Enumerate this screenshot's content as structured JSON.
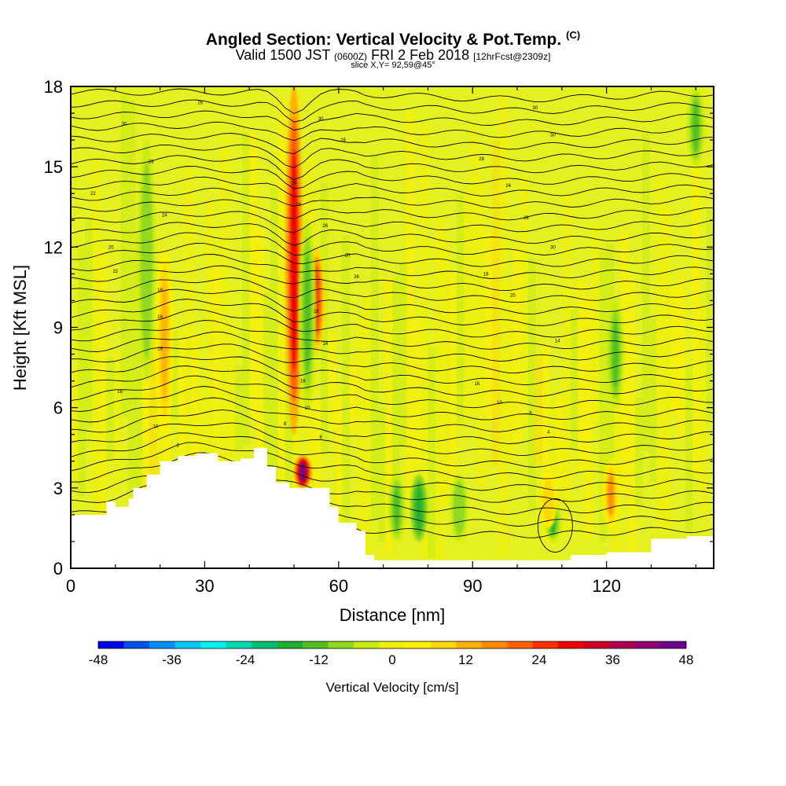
{
  "header": {
    "title": "Angled Section: Vertical Velocity & Pot.Temp.",
    "title_unit": "(C)",
    "valid_main": "Valid 1500 JST",
    "valid_utc": "(0600Z)",
    "valid_date": "FRI 2 Feb 2018",
    "valid_fcst": "[12hrFcst@2309z]",
    "slice": "slice X,Y= 92,59@45°"
  },
  "chart_data": {
    "type": "heatmap",
    "title": "Angled Section: Vertical Velocity & Pot.Temp.",
    "xlabel": "Distance [nm]",
    "ylabel": "Height [Kft MSL]",
    "xlim": [
      0,
      144
    ],
    "ylim": [
      0,
      18
    ],
    "x_ticks": [
      0,
      30,
      60,
      90,
      120
    ],
    "y_ticks": [
      0,
      3,
      6,
      9,
      12,
      15,
      18
    ],
    "colorbar": {
      "label": "Vertical Velocity [cm/s]",
      "ticks": [
        -48,
        -36,
        -24,
        -12,
        0,
        12,
        24,
        36,
        48
      ],
      "colors": [
        "#0000e8",
        "#0050f0",
        "#0090f8",
        "#00c8f8",
        "#00f0f0",
        "#00d8b0",
        "#00c070",
        "#20b030",
        "#50c020",
        "#90d820",
        "#c8ec10",
        "#f0f000",
        "#fff000",
        "#ffd800",
        "#ffb000",
        "#ff8c00",
        "#ff6000",
        "#ff3000",
        "#f00000",
        "#d00020",
        "#b00050",
        "#900070",
        "#6e0090"
      ]
    },
    "terrain_kft": [
      [
        0,
        2.0
      ],
      [
        8,
        2.5
      ],
      [
        10,
        2.3
      ],
      [
        13,
        2.6
      ],
      [
        14,
        3.0
      ],
      [
        17,
        3.5
      ],
      [
        20,
        4.0
      ],
      [
        24,
        4.2
      ],
      [
        28,
        4.3
      ],
      [
        33,
        4.0
      ],
      [
        38,
        4.1
      ],
      [
        41,
        4.5
      ],
      [
        44,
        3.8
      ],
      [
        46,
        3.2
      ],
      [
        49,
        3.0
      ],
      [
        55,
        3.0
      ],
      [
        58,
        2.3
      ],
      [
        60,
        1.7
      ],
      [
        64,
        1.4
      ],
      [
        66,
        0.5
      ],
      [
        68,
        0.3
      ],
      [
        110,
        0.3
      ],
      [
        112,
        0.5
      ],
      [
        120,
        0.6
      ],
      [
        130,
        1.1
      ],
      [
        138,
        1.2
      ],
      [
        144,
        1.2
      ]
    ],
    "vertical_velocity_features": [
      {
        "x": 50,
        "z_range": [
          5,
          18
        ],
        "w": 30
      },
      {
        "x": 52,
        "z_range": [
          3,
          4.2
        ],
        "w": 48
      },
      {
        "x": 55,
        "z_range": [
          8,
          12
        ],
        "w": 24
      },
      {
        "x": 21,
        "z_range": [
          5,
          12
        ],
        "w": 14
      },
      {
        "x": 17,
        "z_range": [
          7,
          16
        ],
        "w": -10
      },
      {
        "x": 53,
        "z_range": [
          6,
          13
        ],
        "w": -14
      },
      {
        "x": 73,
        "z_range": [
          1,
          3.5
        ],
        "w": -14
      },
      {
        "x": 78,
        "z_range": [
          1,
          3.5
        ],
        "w": -18
      },
      {
        "x": 87,
        "z_range": [
          1,
          3.5
        ],
        "w": -10
      },
      {
        "x": 122,
        "z_range": [
          6,
          10
        ],
        "w": -14
      },
      {
        "x": 121,
        "z_range": [
          1.5,
          4
        ],
        "w": 16
      },
      {
        "x": 108,
        "z_range": [
          1,
          2.5
        ],
        "w": -16
      },
      {
        "x": 107,
        "z_range": [
          1.5,
          3.5
        ],
        "w": 10
      },
      {
        "x": 140,
        "z_range": [
          15,
          18
        ],
        "w": -12
      }
    ],
    "isentrope_labels": [
      {
        "x": 29,
        "z": 17.4,
        "text": "26"
      },
      {
        "x": 12,
        "z": 16.6,
        "text": "30"
      },
      {
        "x": 18,
        "z": 15.2,
        "text": "28"
      },
      {
        "x": 5,
        "z": 14.0,
        "text": "22"
      },
      {
        "x": 21,
        "z": 13.2,
        "text": "24"
      },
      {
        "x": 9,
        "z": 12.0,
        "text": "20"
      },
      {
        "x": 10,
        "z": 11.1,
        "text": "22"
      },
      {
        "x": 20,
        "z": 10.4,
        "text": "18"
      },
      {
        "x": 20,
        "z": 9.4,
        "text": "18"
      },
      {
        "x": 20,
        "z": 8.2,
        "text": "16"
      },
      {
        "x": 11,
        "z": 6.6,
        "text": "16"
      },
      {
        "x": 19,
        "z": 5.3,
        "text": "10"
      },
      {
        "x": 24,
        "z": 4.6,
        "text": "8"
      },
      {
        "x": 56,
        "z": 16.8,
        "text": "30"
      },
      {
        "x": 61,
        "z": 16.0,
        "text": "28"
      },
      {
        "x": 50,
        "z": 14.4,
        "text": "26"
      },
      {
        "x": 51,
        "z": 13.6,
        "text": "24"
      },
      {
        "x": 57,
        "z": 12.8,
        "text": "26"
      },
      {
        "x": 62,
        "z": 11.7,
        "text": "20"
      },
      {
        "x": 64,
        "z": 10.9,
        "text": "26"
      },
      {
        "x": 55,
        "z": 9.6,
        "text": "18"
      },
      {
        "x": 57,
        "z": 8.4,
        "text": "14"
      },
      {
        "x": 52,
        "z": 7.0,
        "text": "16"
      },
      {
        "x": 53,
        "z": 6.0,
        "text": "10"
      },
      {
        "x": 48,
        "z": 5.4,
        "text": "8"
      },
      {
        "x": 56,
        "z": 4.9,
        "text": "8"
      },
      {
        "x": 104,
        "z": 17.2,
        "text": "30"
      },
      {
        "x": 108,
        "z": 16.2,
        "text": "30"
      },
      {
        "x": 92,
        "z": 15.3,
        "text": "28"
      },
      {
        "x": 98,
        "z": 14.3,
        "text": "24"
      },
      {
        "x": 102,
        "z": 13.1,
        "text": "28"
      },
      {
        "x": 108,
        "z": 12.0,
        "text": "30"
      },
      {
        "x": 93,
        "z": 11.0,
        "text": "18"
      },
      {
        "x": 99,
        "z": 10.2,
        "text": "20"
      },
      {
        "x": 109,
        "z": 8.5,
        "text": "14"
      },
      {
        "x": 91,
        "z": 6.9,
        "text": "16"
      },
      {
        "x": 96,
        "z": 6.2,
        "text": "10"
      },
      {
        "x": 103,
        "z": 5.8,
        "text": "6"
      },
      {
        "x": 107,
        "z": 5.1,
        "text": "4"
      }
    ]
  }
}
